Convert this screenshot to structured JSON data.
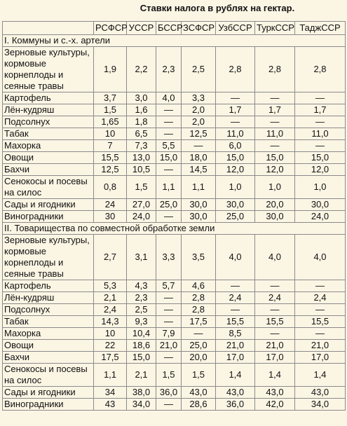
{
  "title": "Ставки налога в рублях на гектар.",
  "table": {
    "header": [
      "РСФСР",
      "УССР",
      "БССР",
      "ЗСФСР",
      "УзбССР",
      "ТуркССР",
      "ТаджССР"
    ],
    "sections": [
      {
        "title": "I. Коммуны и с.-х. артели",
        "rows": [
          [
            "Зерновые культуры, кормовые корнеплоды и сеяные травы",
            "1,9",
            "2,2",
            "2,3",
            "2,5",
            "2,8",
            "2,8",
            "2,8"
          ],
          [
            "Картофель",
            "3,7",
            "3,0",
            "4,0",
            "3,3",
            "—",
            "—",
            "—"
          ],
          [
            "Лён-кудряш",
            "1,5",
            "1,6",
            "—",
            "2,0",
            "1,7",
            "1,7",
            "1,7"
          ],
          [
            "Подсолнух",
            "1,65",
            "1,8",
            "—",
            "2,0",
            "—",
            "—",
            "—"
          ],
          [
            "Табак",
            "10",
            "6,5",
            "—",
            "12,5",
            "11,0",
            "11,0",
            "11,0"
          ],
          [
            "Махорка",
            "7",
            "7,3",
            "5,5",
            "—",
            "6,0",
            "—",
            "—"
          ],
          [
            "Овощи",
            "15,5",
            "13,0",
            "15,0",
            "18,0",
            "15,0",
            "15,0",
            "15,0"
          ],
          [
            "Бахчи",
            "12,5",
            "10,5",
            "—",
            "14,5",
            "12,0",
            "12,0",
            "12,0"
          ],
          [
            "Сенокосы и посевы на силос",
            "0,8",
            "1,5",
            "1,1",
            "1,1",
            "1,0",
            "1,0",
            "1,0"
          ],
          [
            "Сады и ягодники",
            "24",
            "27,0",
            "25,0",
            "30,0",
            "30,0",
            "20,0",
            "30,0"
          ],
          [
            "Виноградники",
            "30",
            "24,0",
            "—",
            "30,0",
            "25,0",
            "30,0",
            "24,0"
          ]
        ]
      },
      {
        "title": "II. Товарищества по совместной обработке земли",
        "rows": [
          [
            "Зерновые культуры, кормовые корнеплоды и сеяные травы",
            "2,7",
            "3,1",
            "3,3",
            "3,5",
            "4,0",
            "4,0",
            "4,0"
          ],
          [
            "Картофель",
            "5,3",
            "4,3",
            "5,7",
            "4,6",
            "—",
            "—",
            "—"
          ],
          [
            "Лён-кудряш",
            "2,1",
            "2,3",
            "—",
            "2,8",
            "2,4",
            "2,4",
            "2,4"
          ],
          [
            "Подсолнух",
            "2,4",
            "2,5",
            "—",
            "2,8",
            "—",
            "—",
            "—"
          ],
          [
            "Табак",
            "14,3",
            "9,3",
            "—",
            "17,5",
            "15,5",
            "15,5",
            "15,5"
          ],
          [
            "Махорка",
            "10",
            "10,4",
            "7,9",
            "—",
            "8,5",
            "—",
            "—"
          ],
          [
            "Овощи",
            "22",
            "18,6",
            "21,0",
            "25,0",
            "21,0",
            "21,0",
            "21,0"
          ],
          [
            "Бахчи",
            "17,5",
            "15,0",
            "—",
            "20,0",
            "17,0",
            "17,0",
            "17,0"
          ],
          [
            "Сенокосы и посевы на силос",
            "1,1",
            "2,1",
            "1,5",
            "1,5",
            "1,4",
            "1,4",
            "1,4"
          ],
          [
            "Сады и ягодники",
            "34",
            "38,0",
            "36,0",
            "43,0",
            "43,0",
            "43,0",
            "43,0"
          ],
          [
            "Виноградники",
            "43",
            "34,0",
            "—",
            "28,6",
            "36,0",
            "42,0",
            "34,0"
          ]
        ]
      }
    ]
  }
}
